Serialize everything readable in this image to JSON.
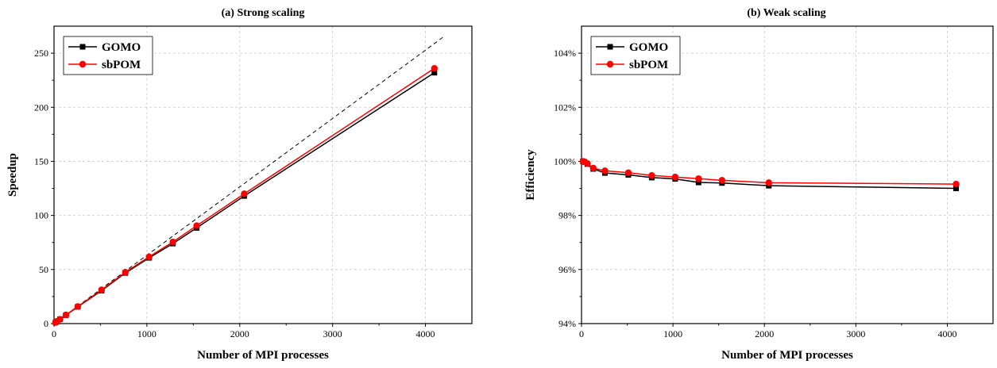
{
  "chart_data": [
    {
      "type": "line",
      "title": "(a) Strong scaling",
      "xlabel": "Number of MPI processes",
      "ylabel": "Speedup",
      "xlim": [
        0,
        4500
      ],
      "ylim": [
        0,
        275
      ],
      "xticks": [
        0,
        1000,
        2000,
        3000,
        4000
      ],
      "yticks": [
        0,
        50,
        100,
        150,
        200,
        250
      ],
      "xtick_labels": [
        "0",
        "1000",
        "2000",
        "3000",
        "4000"
      ],
      "ytick_labels": [
        "0",
        "50",
        "100",
        "150",
        "200",
        "250"
      ],
      "grid": true,
      "legend_position": "top-left",
      "ideal_line": {
        "x": [
          0,
          4200
        ],
        "y": [
          0,
          265.5
        ]
      },
      "series": [
        {
          "name": "GOMO",
          "color": "#000000",
          "marker": "square",
          "x": [
            16,
            32,
            64,
            128,
            256,
            512,
            768,
            1024,
            1280,
            1536,
            2048,
            4096
          ],
          "y": [
            1,
            2,
            4,
            7.8,
            15.5,
            30.5,
            46.8,
            60.8,
            74,
            88.5,
            118,
            232
          ]
        },
        {
          "name": "sbPOM",
          "color": "#ff0000",
          "marker": "circle",
          "x": [
            16,
            32,
            64,
            128,
            256,
            512,
            768,
            1024,
            1280,
            1536,
            2048,
            4096
          ],
          "y": [
            1,
            2.1,
            4,
            8,
            15.8,
            31.2,
            47.5,
            61.8,
            75.5,
            90.5,
            120,
            236
          ]
        }
      ]
    },
    {
      "type": "line",
      "title": "(b) Weak scaling",
      "xlabel": "Number of MPI processes",
      "ylabel": "Efficiency",
      "xlim": [
        0,
        4500
      ],
      "ylim": [
        94,
        105
      ],
      "xticks": [
        0,
        1000,
        2000,
        3000,
        4000
      ],
      "yticks": [
        94,
        96,
        98,
        100,
        102,
        104
      ],
      "xtick_labels": [
        "0",
        "1000",
        "2000",
        "3000",
        "4000"
      ],
      "ytick_labels": [
        "94%",
        "96%",
        "98%",
        "100%",
        "102%",
        "104%"
      ],
      "grid": true,
      "legend_position": "top-left",
      "series": [
        {
          "name": "GOMO",
          "color": "#000000",
          "marker": "square",
          "x": [
            16,
            32,
            64,
            128,
            256,
            512,
            768,
            1024,
            1280,
            1536,
            2048,
            4096
          ],
          "y": [
            100,
            99.98,
            99.9,
            99.72,
            99.57,
            99.5,
            99.4,
            99.35,
            99.22,
            99.2,
            99.1,
            99.0
          ]
        },
        {
          "name": "sbPOM",
          "color": "#ff0000",
          "marker": "circle",
          "x": [
            16,
            32,
            64,
            128,
            256,
            512,
            768,
            1024,
            1280,
            1536,
            2048,
            4096
          ],
          "y": [
            100,
            99.98,
            99.92,
            99.75,
            99.65,
            99.58,
            99.48,
            99.42,
            99.36,
            99.3,
            99.21,
            99.16
          ]
        }
      ]
    }
  ]
}
